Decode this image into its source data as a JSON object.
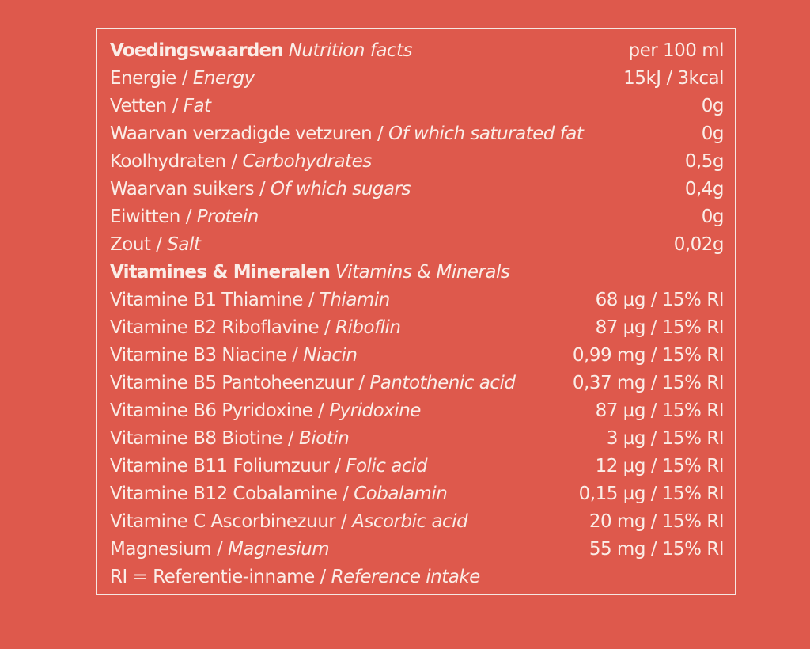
{
  "header": {
    "title_nl": "Voedingswaarden",
    "title_en": "Nutrition facts",
    "per": "per 100 ml"
  },
  "nutrients": [
    {
      "nl": "Energie / ",
      "en": "Energy",
      "value": "15kJ / 3kcal"
    },
    {
      "nl": "Vetten / ",
      "en": "Fat",
      "value": "0g"
    },
    {
      "nl": "Waarvan verzadigde vetzuren / ",
      "en": "Of which saturated fat",
      "value": "0g"
    },
    {
      "nl": "Koolhydraten / ",
      "en": "Carbohydrates",
      "value": "0,5g"
    },
    {
      "nl": "Waarvan suikers / ",
      "en": "Of which sugars",
      "value": "0,4g"
    },
    {
      "nl": "Eiwitten / ",
      "en": "Protein",
      "value": "0g"
    },
    {
      "nl": "Zout / ",
      "en": "Salt",
      "value": "0,02g"
    }
  ],
  "vitamins_header": {
    "nl": "Vitamines & Mineralen",
    "en": "Vitamins & Minerals"
  },
  "vitamins": [
    {
      "nl": "Vitamine B1 Thiamine / ",
      "en": "Thiamin",
      "value": "68 µg / 15% RI"
    },
    {
      "nl": "Vitamine B2 Riboflavine / ",
      "en": "Riboflin",
      "value": "87 µg / 15% RI"
    },
    {
      "nl": "Vitamine B3 Niacine / ",
      "en": "Niacin",
      "value": "0,99 mg / 15% RI"
    },
    {
      "nl": "Vitamine B5 Pantoheenzuur / ",
      "en": "Pantothenic acid",
      "value": "0,37 mg / 15% RI"
    },
    {
      "nl": "Vitamine B6 Pyridoxine / ",
      "en": "Pyridoxine",
      "value": "87 µg / 15% RI"
    },
    {
      "nl": "Vitamine B8 Biotine / ",
      "en": "Biotin",
      "value": "3 µg / 15% RI"
    },
    {
      "nl": "Vitamine B11 Foliumzuur / ",
      "en": "Folic acid",
      "value": "12 µg / 15% RI"
    },
    {
      "nl": "Vitamine B12 Cobalamine / ",
      "en": "Cobalamin",
      "value": "0,15 µg / 15% RI"
    },
    {
      "nl": "Vitamine C Ascorbinezuur / ",
      "en": "Ascorbic acid",
      "value": "20 mg / 15% RI"
    },
    {
      "nl": "Magnesium / ",
      "en": "Magnesium",
      "value": "55 mg / 15% RI"
    }
  ],
  "footnote": {
    "nl": "RI = Referentie-inname / ",
    "en": "Reference intake"
  },
  "colors": {
    "background": "#DE594C",
    "text": "#FBEDE7",
    "border": "#F6E7E2"
  }
}
